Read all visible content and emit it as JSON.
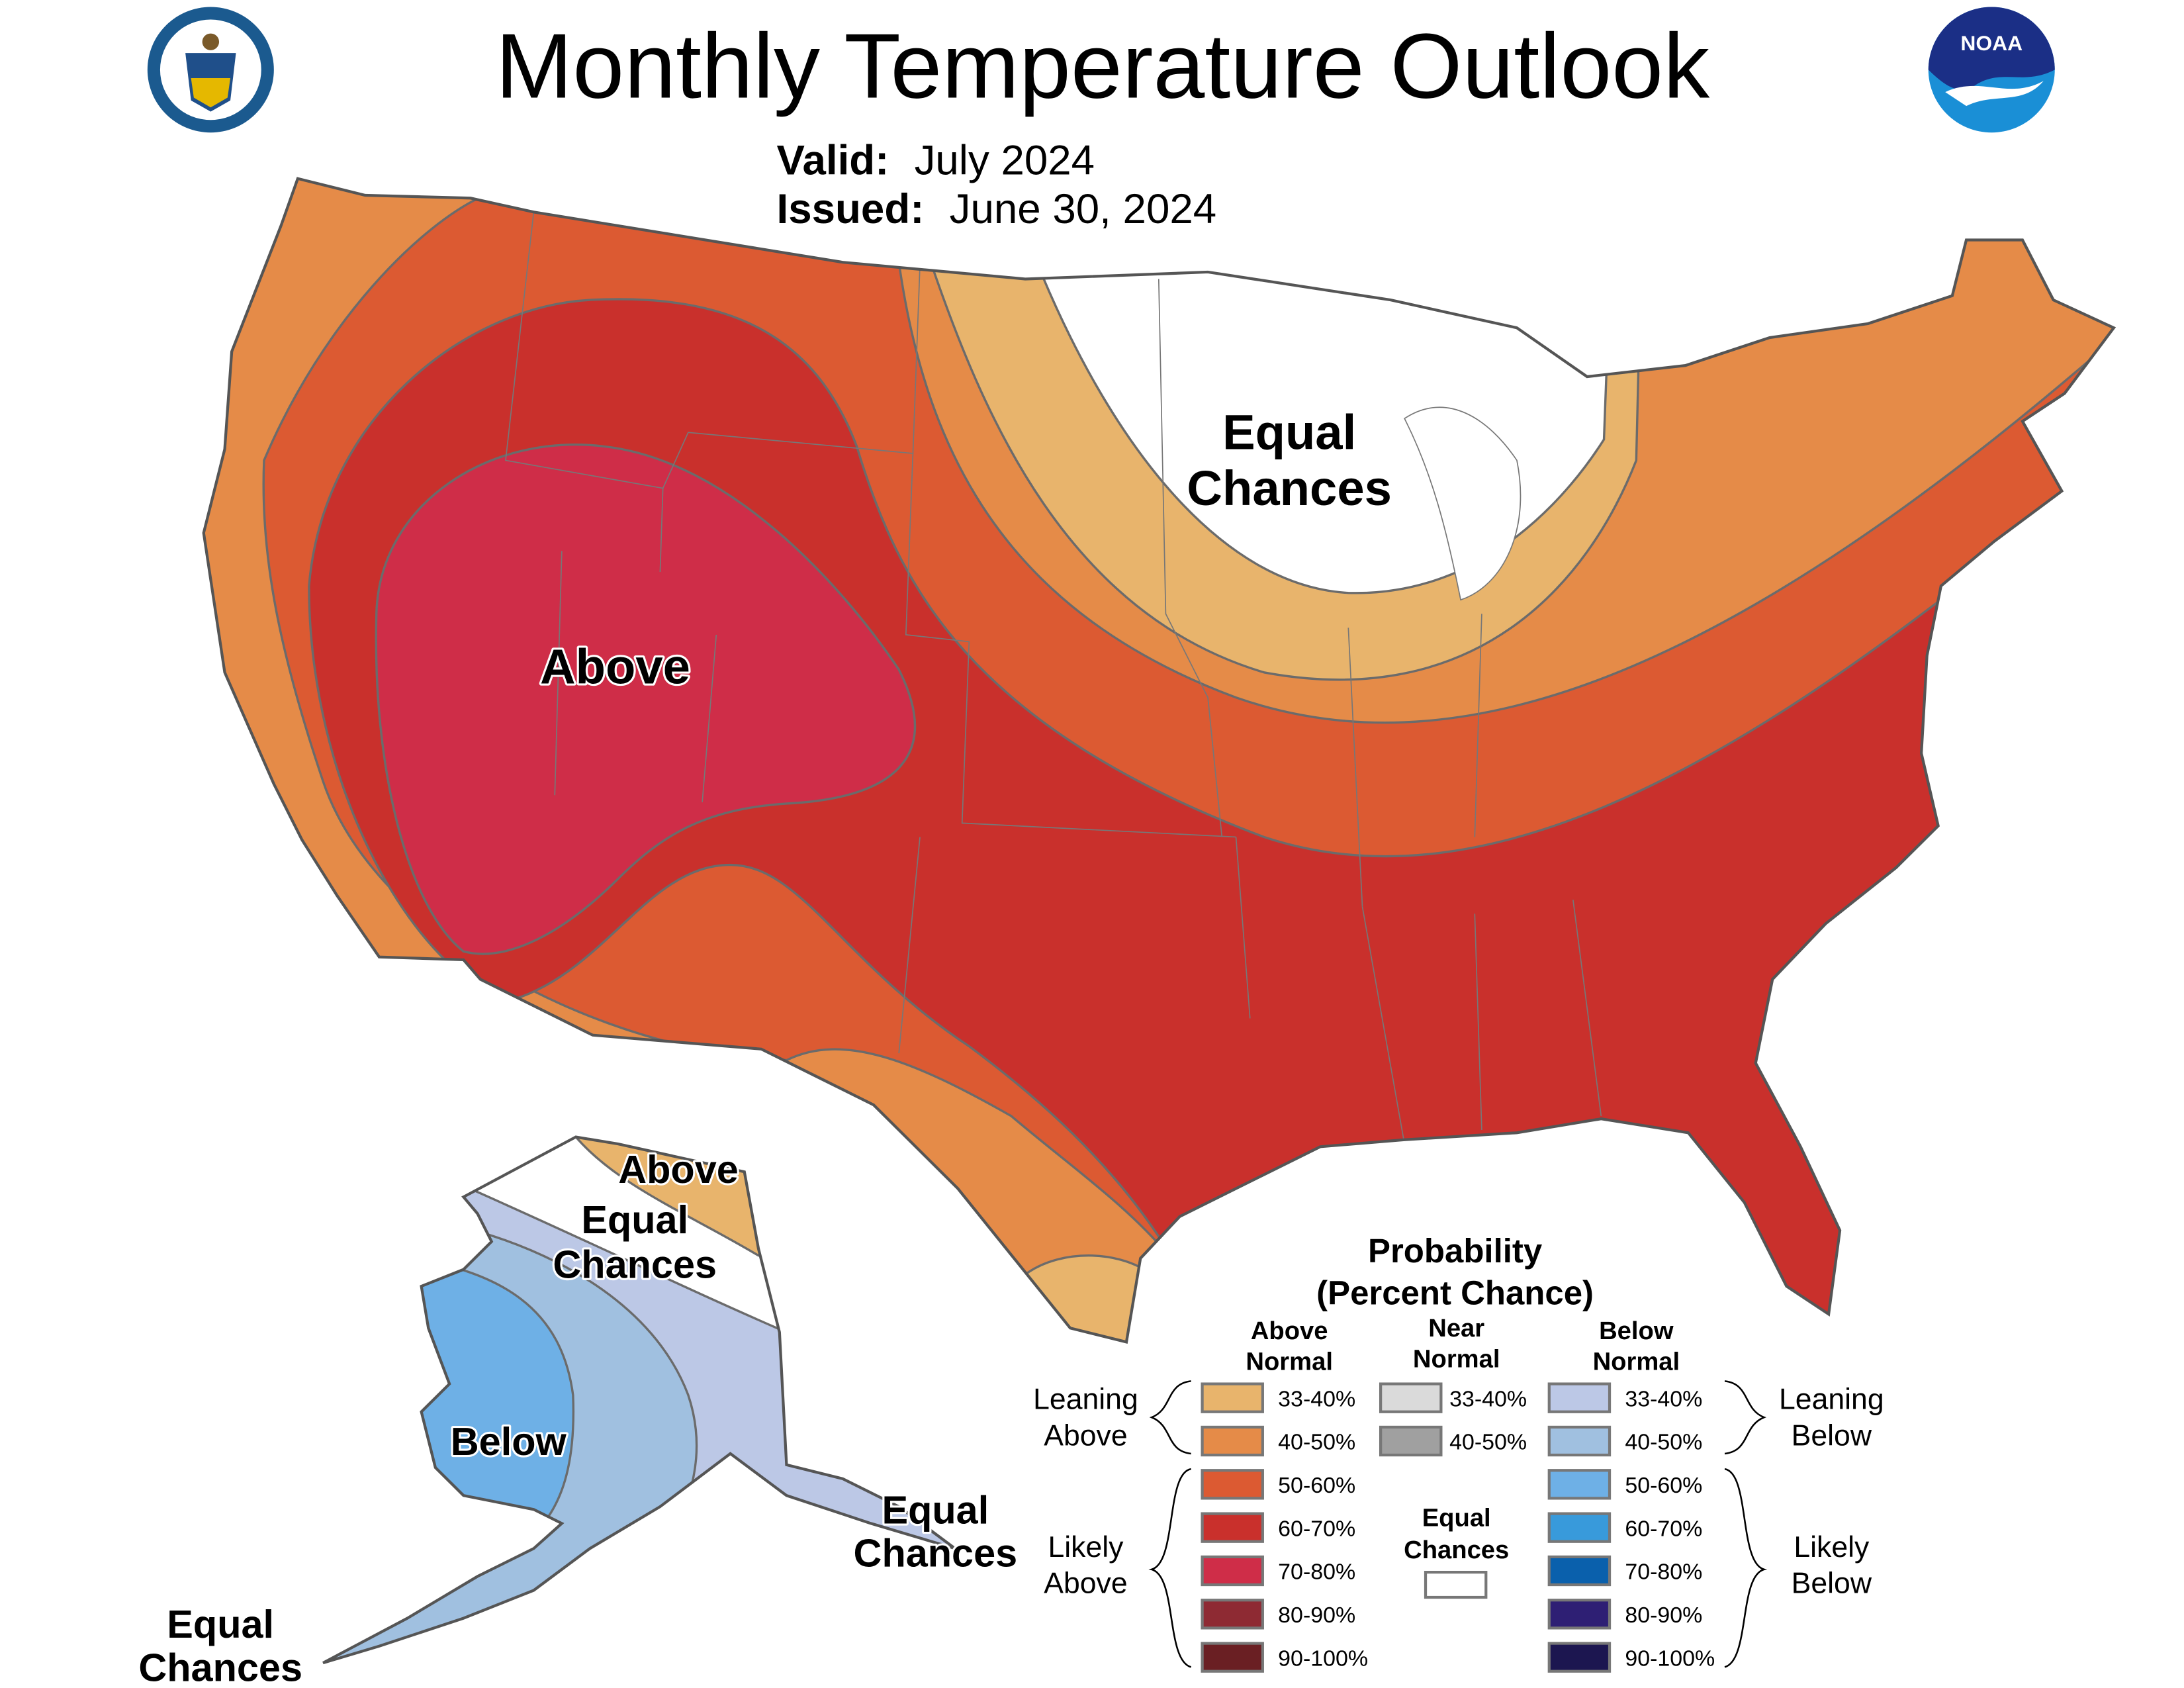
{
  "header": {
    "title": "Monthly Temperature Outlook",
    "valid_label": "Valid:",
    "valid_value": "July 2024",
    "issued_label": "Issued:",
    "issued_value": "June 30, 2024",
    "left_logo": "US Department of Commerce seal",
    "right_logo_text": "NOAA"
  },
  "map_labels": {
    "conus_equal_1": "Equal",
    "conus_equal_2": "Chances",
    "conus_above": "Above",
    "ak_above": "Above",
    "ak_equal_1": "Equal",
    "ak_equal_2": "Chances",
    "ak_below": "Below",
    "ak_se_equal_1": "Equal",
    "ak_se_equal_2": "Chances",
    "ak_sw_equal_1": "Equal",
    "ak_sw_equal_2": "Chances"
  },
  "colors": {
    "equal_chances": "#ffffff",
    "border": "#6b6b6b"
  },
  "legend": {
    "title_1": "Probability",
    "title_2": "(Percent Chance)",
    "col_above_1": "Above",
    "col_above_2": "Normal",
    "col_near_1": "Near",
    "col_near_2": "Normal",
    "col_below_1": "Below",
    "col_below_2": "Normal",
    "leaning_above_1": "Leaning",
    "leaning_above_2": "Above",
    "likely_above_1": "Likely",
    "likely_above_2": "Above",
    "leaning_below_1": "Leaning",
    "leaning_below_2": "Below",
    "likely_below_1": "Likely",
    "likely_below_2": "Below",
    "ec_1": "Equal",
    "ec_2": "Chances",
    "above": [
      {
        "label": "33-40%",
        "color": "#E8B46C"
      },
      {
        "label": "40-50%",
        "color": "#E58B48"
      },
      {
        "label": "50-60%",
        "color": "#DC5A32"
      },
      {
        "label": "60-70%",
        "color": "#C9302C"
      },
      {
        "label": "70-80%",
        "color": "#CF2D48"
      },
      {
        "label": "80-90%",
        "color": "#8E2A33"
      },
      {
        "label": "90-100%",
        "color": "#6A1F23"
      }
    ],
    "near": [
      {
        "label": "33-40%",
        "color": "#DADADA"
      },
      {
        "label": "40-50%",
        "color": "#A0A0A0"
      }
    ],
    "below": [
      {
        "label": "33-40%",
        "color": "#BCC8E6"
      },
      {
        "label": "40-50%",
        "color": "#A0C0E0"
      },
      {
        "label": "50-60%",
        "color": "#6EB0E6"
      },
      {
        "label": "60-70%",
        "color": "#389ADB"
      },
      {
        "label": "70-80%",
        "color": "#0A60AC"
      },
      {
        "label": "80-90%",
        "color": "#2E1F74"
      },
      {
        "label": "90-100%",
        "color": "#1C1650"
      }
    ]
  }
}
